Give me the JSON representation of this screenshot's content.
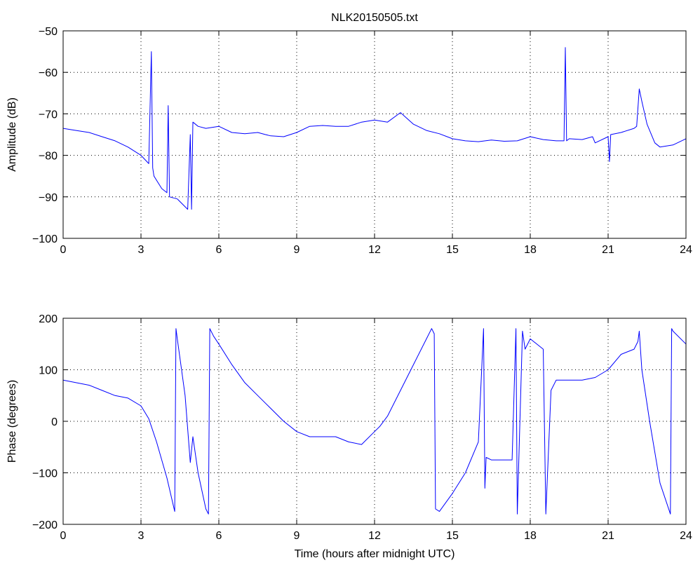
{
  "chart_data": [
    {
      "type": "line",
      "title": "NLK20150505.txt",
      "xlabel": "",
      "ylabel": "Amplitude (dB)",
      "xlim": [
        0,
        24
      ],
      "ylim": [
        -100,
        -50
      ],
      "xticks": [
        0,
        3,
        6,
        9,
        12,
        15,
        18,
        21,
        24
      ],
      "yticks": [
        -50,
        -60,
        -70,
        -80,
        -90,
        -100
      ],
      "xtick_labels": [
        "0",
        "3",
        "6",
        "9",
        "12",
        "15",
        "18",
        "21",
        "24"
      ],
      "ytick_labels": [
        "−50",
        "−60",
        "−70",
        "−80",
        "−90",
        "−100"
      ],
      "grid": true,
      "color": "#0000ff",
      "series": [
        {
          "x": [
            0,
            0.5,
            1.0,
            1.5,
            2.0,
            2.5,
            3.0,
            3.3,
            3.4,
            3.45,
            3.5,
            3.8,
            4.0,
            4.05,
            4.1,
            4.4,
            4.8,
            4.9,
            4.95,
            5.0,
            5.2,
            5.5,
            6.0,
            6.5,
            7.0,
            7.5,
            7.8,
            8.0,
            8.5,
            9.0,
            9.5,
            10.0,
            10.5,
            11.0,
            11.5,
            12.0,
            12.5,
            13.0,
            13.5,
            14.0,
            14.5,
            15.0,
            15.5,
            16.0,
            16.5,
            17.0,
            17.5,
            18.0,
            18.5,
            19.0,
            19.3,
            19.35,
            19.4,
            19.5,
            20.0,
            20.4,
            20.5,
            21.0,
            21.05,
            21.1,
            21.5,
            22.0,
            22.1,
            22.2,
            22.3,
            22.5,
            22.8,
            23.0,
            23.5,
            24.0
          ],
          "y": [
            -73.5,
            -74,
            -74.5,
            -75.5,
            -76.5,
            -78,
            -80,
            -82,
            -55,
            -83,
            -85,
            -88,
            -89,
            -68,
            -90,
            -90.5,
            -93,
            -75,
            -93,
            -72,
            -73,
            -73.5,
            -73,
            -74.5,
            -74.8,
            -74.5,
            -75,
            -75.3,
            -75.5,
            -74.5,
            -73,
            -72.8,
            -73,
            -73,
            -72,
            -71.5,
            -72,
            -69.7,
            -72.5,
            -74,
            -74.8,
            -76,
            -76.5,
            -76.7,
            -76.3,
            -76.6,
            -76.5,
            -75.5,
            -76.2,
            -76.5,
            -76.5,
            -54,
            -76.5,
            -76,
            -76.2,
            -75.5,
            -77,
            -75.5,
            -81.5,
            -75,
            -74.5,
            -73.5,
            -73,
            -64,
            -67,
            -72.5,
            -77,
            -78,
            -77.5,
            -76
          ]
        }
      ]
    },
    {
      "type": "line",
      "title": "",
      "xlabel": "Time (hours after midnight UTC)",
      "ylabel": "Phase (degrees)",
      "xlim": [
        0,
        24
      ],
      "ylim": [
        -200,
        200
      ],
      "xticks": [
        0,
        3,
        6,
        9,
        12,
        15,
        18,
        21,
        24
      ],
      "yticks": [
        200,
        100,
        0,
        -100,
        -200
      ],
      "xtick_labels": [
        "0",
        "3",
        "6",
        "9",
        "12",
        "15",
        "18",
        "21",
        "24"
      ],
      "ytick_labels": [
        "200",
        "100",
        "0",
        "−100",
        "−200"
      ],
      "grid": true,
      "color": "#0000ff",
      "series": [
        {
          "x": [
            0,
            0.5,
            1.0,
            1.5,
            2.0,
            2.5,
            3.0,
            3.3,
            3.6,
            4.0,
            4.3,
            4.35,
            4.4,
            4.7,
            4.9,
            5.0,
            5.2,
            5.5,
            5.6,
            5.65,
            5.7,
            5.8,
            6.0,
            6.5,
            7.0,
            7.5,
            8.0,
            8.5,
            9.0,
            9.5,
            10.0,
            10.5,
            11.0,
            11.5,
            12.0,
            12.2,
            12.5,
            13.0,
            13.5,
            14.0,
            14.2,
            14.3,
            14.35,
            14.5,
            15.0,
            15.5,
            16.0,
            16.2,
            16.25,
            16.3,
            16.5,
            17.0,
            17.3,
            17.45,
            17.5,
            17.7,
            17.8,
            18.0,
            18.5,
            18.6,
            18.8,
            19.0,
            19.5,
            20.0,
            20.5,
            21.0,
            21.5,
            22.0,
            22.15,
            22.2,
            22.3,
            22.6,
            23.0,
            23.4,
            23.45,
            23.5,
            24.0
          ],
          "y": [
            80,
            75,
            70,
            60,
            50,
            45,
            30,
            5,
            -40,
            -110,
            -175,
            180,
            160,
            50,
            -80,
            -30,
            -100,
            -170,
            -180,
            180,
            175,
            165,
            150,
            110,
            75,
            50,
            25,
            0,
            -20,
            -30,
            -30,
            -30,
            -40,
            -45,
            -20,
            -10,
            10,
            60,
            110,
            160,
            180,
            170,
            -170,
            -175,
            -140,
            -100,
            -40,
            180,
            -130,
            -70,
            -75,
            -75,
            -75,
            180,
            -180,
            175,
            140,
            160,
            140,
            -180,
            60,
            80,
            80,
            80,
            85,
            100,
            130,
            140,
            155,
            175,
            100,
            0,
            -120,
            -180,
            180,
            175,
            150
          ]
        }
      ]
    }
  ]
}
